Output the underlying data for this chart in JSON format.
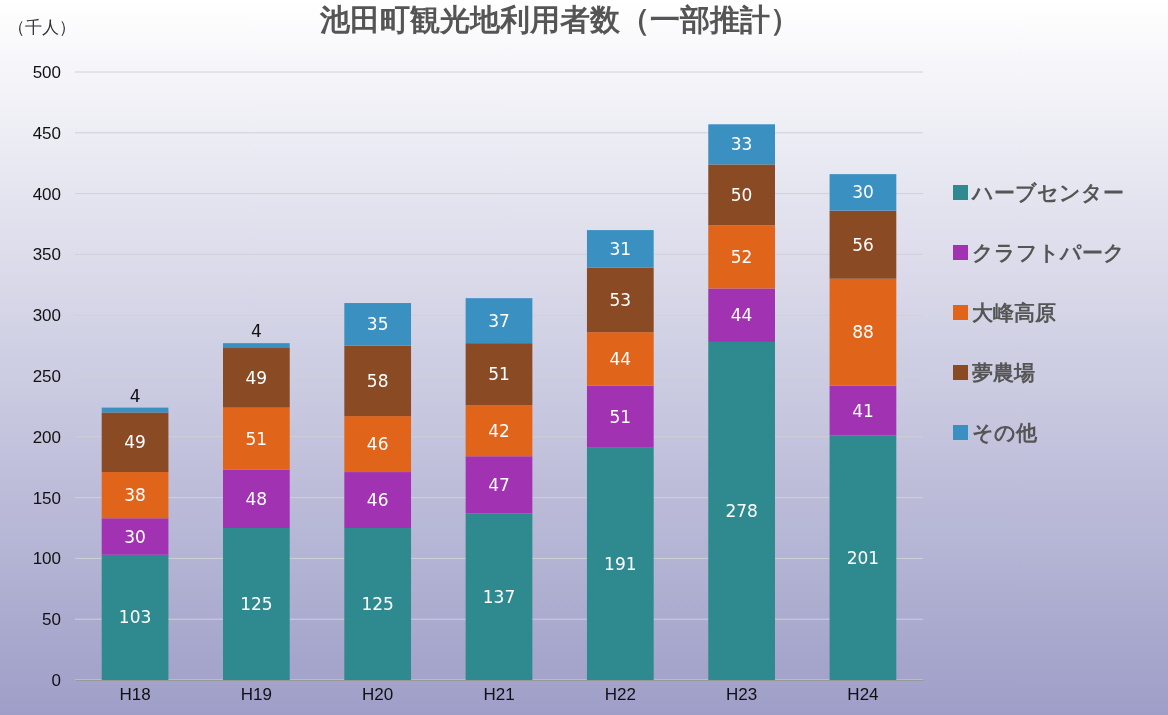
{
  "chart_data": {
    "type": "bar",
    "title": "池田町観光地利用者数（一部推計）",
    "ylabel": "（千人）",
    "categories": [
      "H18",
      "H19",
      "H20",
      "H21",
      "H22",
      "H23",
      "H24"
    ],
    "stacked": true,
    "data_labels": true,
    "grid": "y",
    "legend": "right",
    "ylim": [
      0,
      500
    ],
    "yticks": [
      0,
      50,
      100,
      150,
      200,
      250,
      300,
      350,
      400,
      450,
      500
    ],
    "series": [
      {
        "name": "ハーブセンター",
        "color": "#2f8a90",
        "values": [
          103,
          125,
          125,
          137,
          191,
          278,
          201
        ]
      },
      {
        "name": "クラフトパーク",
        "color": "#a133b3",
        "values": [
          30,
          48,
          46,
          47,
          51,
          44,
          41
        ]
      },
      {
        "name": "大峰高原",
        "color": "#e0641a",
        "values": [
          38,
          51,
          46,
          42,
          44,
          52,
          88
        ]
      },
      {
        "name": "夢農場",
        "color": "#8a4a24",
        "values": [
          49,
          49,
          58,
          51,
          53,
          50,
          56
        ]
      },
      {
        "name": "その他",
        "color": "#3b90c2",
        "values": [
          4,
          4,
          35,
          37,
          31,
          33,
          30
        ]
      }
    ]
  }
}
